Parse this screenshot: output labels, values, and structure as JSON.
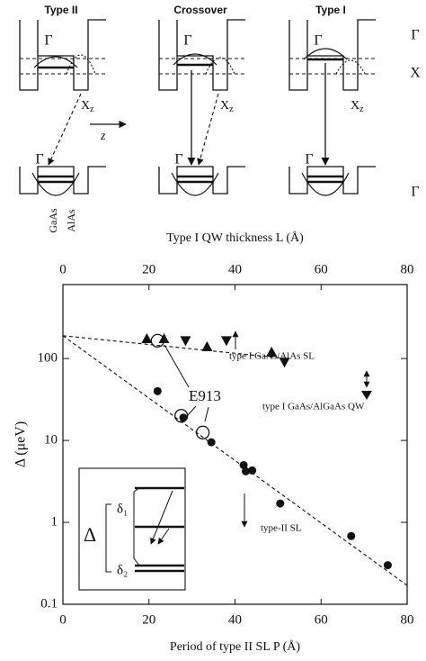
{
  "diagram": {
    "panels": [
      "Type II",
      "Crossover",
      "Type I"
    ],
    "gamma": "Γ",
    "x_label": "X",
    "xz": {
      "base": "X",
      "sub": "z"
    },
    "z": "z",
    "materials": [
      "GaAs",
      "AlAs"
    ]
  },
  "chart_data": {
    "type": "scatter",
    "xlabel": "Period of type II SL P (Å)",
    "x2label": "Type I QW thickness L (Å)",
    "ylabel": "Δ (μeV)",
    "xlim": [
      0,
      80
    ],
    "xticks": [
      0,
      20,
      40,
      60,
      80
    ],
    "x2lim": [
      0,
      80
    ],
    "x2ticks": [
      0,
      20,
      40,
      60,
      80
    ],
    "ylim": [
      0.1,
      800
    ],
    "yticks": [
      0.1,
      1,
      10,
      100
    ],
    "log_y": true,
    "series": [
      {
        "name": "type-II SL",
        "marker": "filled-circle",
        "color": "#111",
        "x": [
          22,
          28,
          34.5,
          42,
          42.5,
          44,
          50.5,
          67,
          75.5
        ],
        "values": [
          40,
          19,
          9.5,
          5,
          4.2,
          4.3,
          1.7,
          0.68,
          0.3
        ]
      },
      {
        "name": "E913",
        "marker": "open-circle",
        "color": "#111",
        "x": [
          22,
          27.5,
          32.5
        ],
        "values": [
          165,
          20,
          12.5
        ]
      },
      {
        "name": "type I GaAs/AlAs SL",
        "marker": "triangle-up",
        "axis": "x2",
        "color": "#111",
        "x": [
          19.5,
          23.5,
          33.5,
          48.5
        ],
        "values": [
          175,
          175,
          140,
          120
        ]
      },
      {
        "name": "type I GaAs/AlGaAs QW",
        "marker": "triangle-down",
        "axis": "x2",
        "color": "#111",
        "x": [
          28.5,
          38,
          51.5
        ],
        "values": [
          165,
          165,
          90
        ]
      }
    ],
    "fits": [
      {
        "x": [
          0,
          80
        ],
        "values": [
          190,
          0.17
        ]
      },
      {
        "axis": "x2",
        "x": [
          0,
          52
        ],
        "values": [
          190,
          100
        ]
      }
    ],
    "inset": {
      "delta": "Δ",
      "delta1": "δ₁",
      "delta2": "δ₂"
    }
  }
}
